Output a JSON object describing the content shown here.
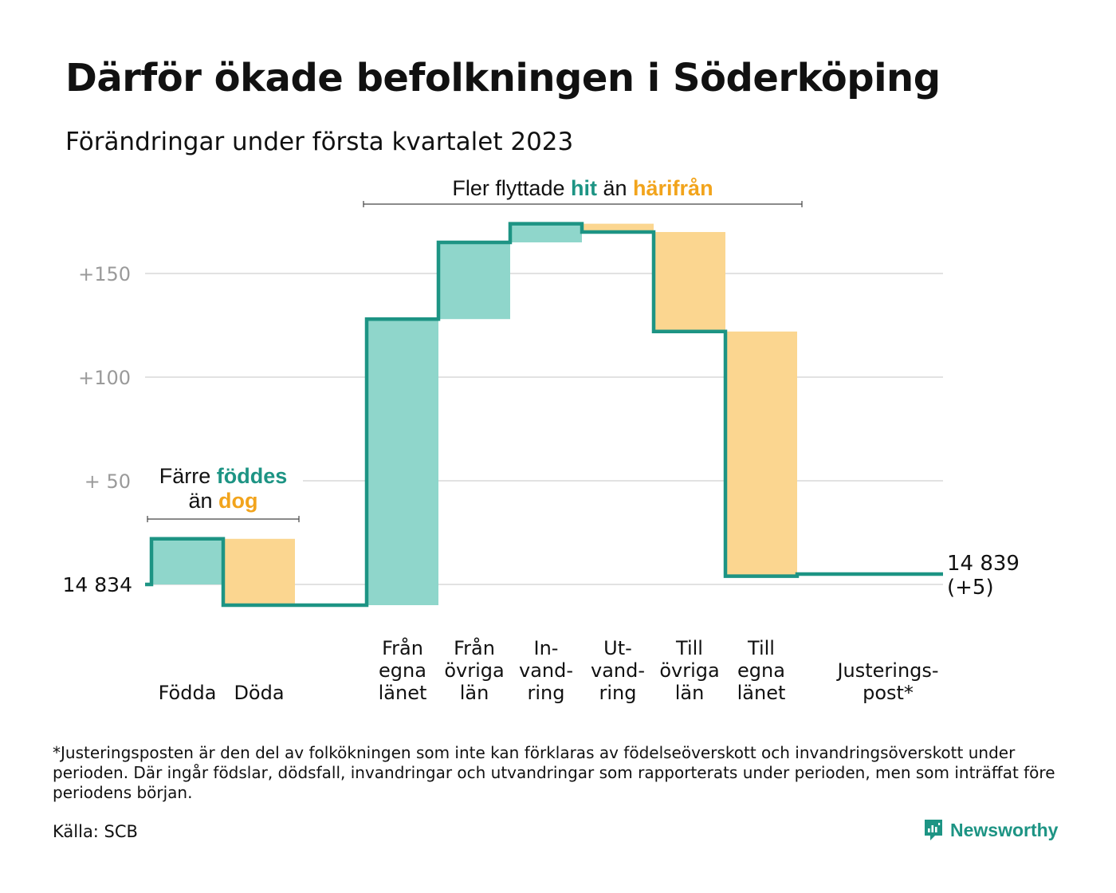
{
  "title": "Därför ökade befolkningen i Söderköping",
  "subtitle": "Förändringar under första kvartalet 2023",
  "annotations": {
    "migration": {
      "before": "Fler flyttade ",
      "hit": "hit",
      "middle": " än ",
      "harifran": "härifrån"
    },
    "births": {
      "line1_before": "Färre ",
      "line1_hl": "föddes",
      "line2_before": "än ",
      "line2_hl": "dog"
    }
  },
  "footnote": "*Justeringsposten är den del av folkökningen som inte kan förklaras av födelseöverskott och invandringsöverskott under perioden. Där ingår födslar, dödsfall, invandringar och utvandringar som rapporterats under perioden, men som inträffat före periodens början.",
  "source": "Källa: SCB",
  "brand": "Newsworthy",
  "colors": {
    "increase": "#8fd6cb",
    "decrease": "#fbd690",
    "line": "#1d9484",
    "hit_text": "#1d9484",
    "harifran_text": "#f2a41c",
    "grid": "#e2e2e2",
    "tick": "#9a9a9a"
  },
  "chart_data": {
    "type": "waterfall",
    "title": "Därför ökade befolkningen i Söderköping",
    "subtitle": "Förändringar under första kvartalet 2023",
    "baseline": 14834,
    "baseline_label": "14 834",
    "end_label_value": "14 839",
    "end_label_change": "(+5)",
    "ylim": [
      -15,
      176
    ],
    "yticks": [
      {
        "value": 50,
        "label": "+ 50"
      },
      {
        "value": 100,
        "label": "+100"
      },
      {
        "value": 150,
        "label": "+150"
      }
    ],
    "grid": true,
    "steps": [
      {
        "label": [
          "Födda"
        ],
        "change": 22,
        "start": 0,
        "end": 22
      },
      {
        "label": [
          "Döda"
        ],
        "change": -32,
        "start": 22,
        "end": -10
      },
      {
        "label": [
          ""
        ],
        "change": 0,
        "start": -10,
        "end": -10
      },
      {
        "label": [
          "Från",
          "egna",
          "länet"
        ],
        "change": 138,
        "start": -10,
        "end": 128
      },
      {
        "label": [
          "Från",
          "övriga",
          "län"
        ],
        "change": 37,
        "start": 128,
        "end": 165
      },
      {
        "label": [
          "In-",
          "vand-",
          "ring"
        ],
        "change": 9,
        "start": 165,
        "end": 174
      },
      {
        "label": [
          "Ut-",
          "vand-",
          "ring"
        ],
        "change": -4,
        "start": 174,
        "end": 170
      },
      {
        "label": [
          "Till",
          "övriga",
          "län"
        ],
        "change": -48,
        "start": 170,
        "end": 122
      },
      {
        "label": [
          "Till",
          "egna",
          "länet"
        ],
        "change": -118,
        "start": 122,
        "end": 4
      },
      {
        "label": [
          "Justerings-",
          "post*"
        ],
        "change": 1,
        "start": 4,
        "end": 5
      }
    ]
  }
}
